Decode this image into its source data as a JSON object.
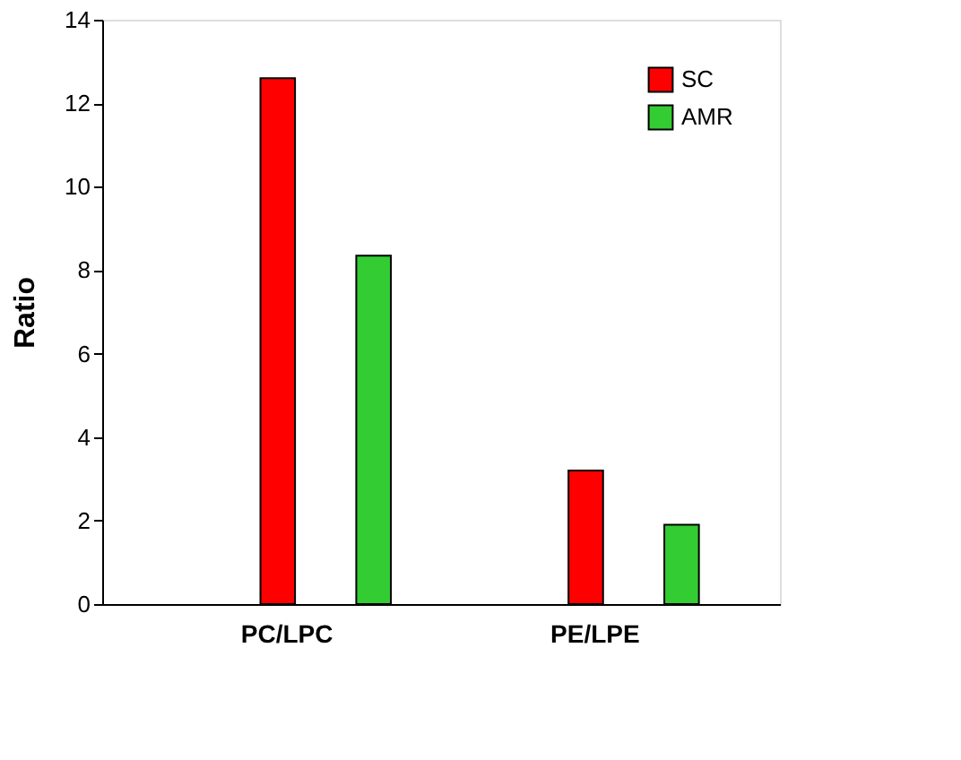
{
  "chart_data": {
    "type": "bar",
    "ylabel": "Ratio",
    "categories": [
      "PC/LPC",
      "PE/LPE"
    ],
    "series": [
      {
        "name": "SC",
        "color": "#ff0000",
        "values": [
          12.6,
          3.2
        ]
      },
      {
        "name": "AMR",
        "color": "#33cc33",
        "values": [
          8.35,
          1.9
        ]
      }
    ],
    "ylim": [
      0,
      14
    ],
    "yticks": [
      0,
      2,
      4,
      6,
      8,
      10,
      12,
      14
    ],
    "grid": false,
    "legend": "top right"
  }
}
